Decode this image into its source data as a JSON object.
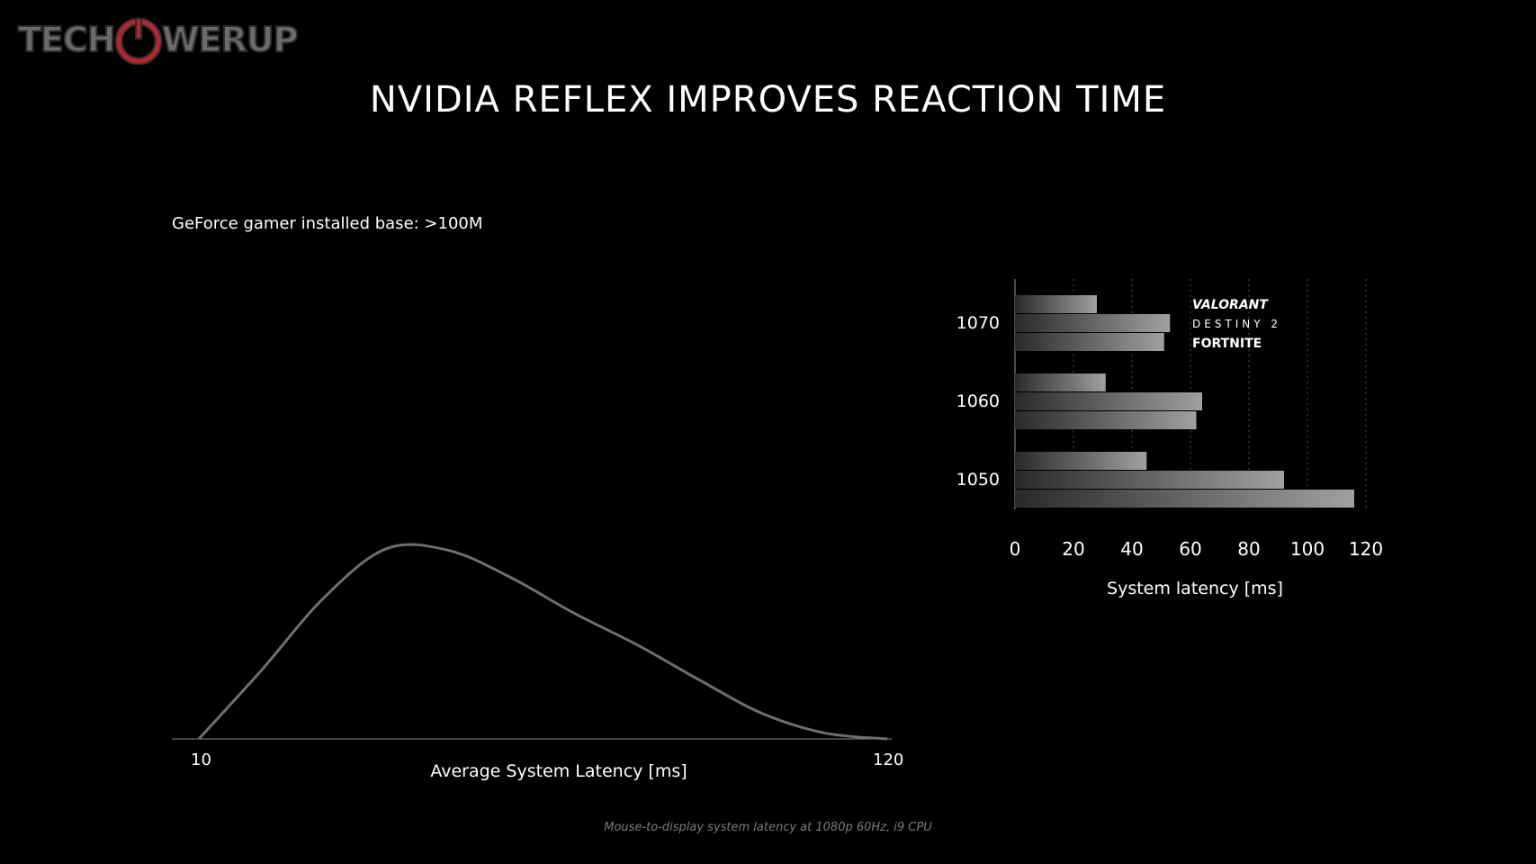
{
  "logo": {
    "text_left": "TECH",
    "text_mid": "P",
    "text_right": "WERUP",
    "icon": "power-icon"
  },
  "title": "NVIDIA REFLEX IMPROVES REACTION TIME",
  "subtitle": "GeForce gamer installed base: >100M",
  "footnote": "Mouse-to-display system latency at 1080p 60Hz, i9 CPU",
  "chart_data": [
    {
      "type": "area",
      "title": "",
      "xlabel": "Average System Latency [ms]",
      "ylabel": "",
      "xlim": [
        10,
        120
      ],
      "x_ticks": [
        "10",
        "120"
      ],
      "x": [
        10,
        20,
        30,
        40,
        50,
        60,
        70,
        80,
        90,
        100,
        110,
        120
      ],
      "values": [
        0,
        0.35,
        0.72,
        0.97,
        0.96,
        0.82,
        0.64,
        0.48,
        0.3,
        0.13,
        0.03,
        0
      ],
      "grid": false
    },
    {
      "type": "bar",
      "orientation": "horizontal",
      "title": "",
      "xlabel": "System latency [ms]",
      "xlim": [
        0,
        120
      ],
      "x_ticks": [
        "0",
        "20",
        "40",
        "60",
        "80",
        "100",
        "120"
      ],
      "grid": true,
      "legend_position": "top-right",
      "categories": [
        "1070",
        "1060",
        "1050"
      ],
      "series": [
        {
          "name": "VALORANT",
          "values": [
            28,
            31,
            45
          ]
        },
        {
          "name": "DESTINY 2",
          "values": [
            53,
            64,
            92
          ]
        },
        {
          "name": "FORTNITE",
          "values": [
            51,
            62,
            116
          ]
        }
      ]
    }
  ],
  "colors": {
    "background": "#000000",
    "curve": "#6e6e6e",
    "bar_light": "#9a9a9a",
    "bar_dark": "#2a2a2a",
    "grid": "#555555",
    "logo_red": "#b3262b"
  }
}
